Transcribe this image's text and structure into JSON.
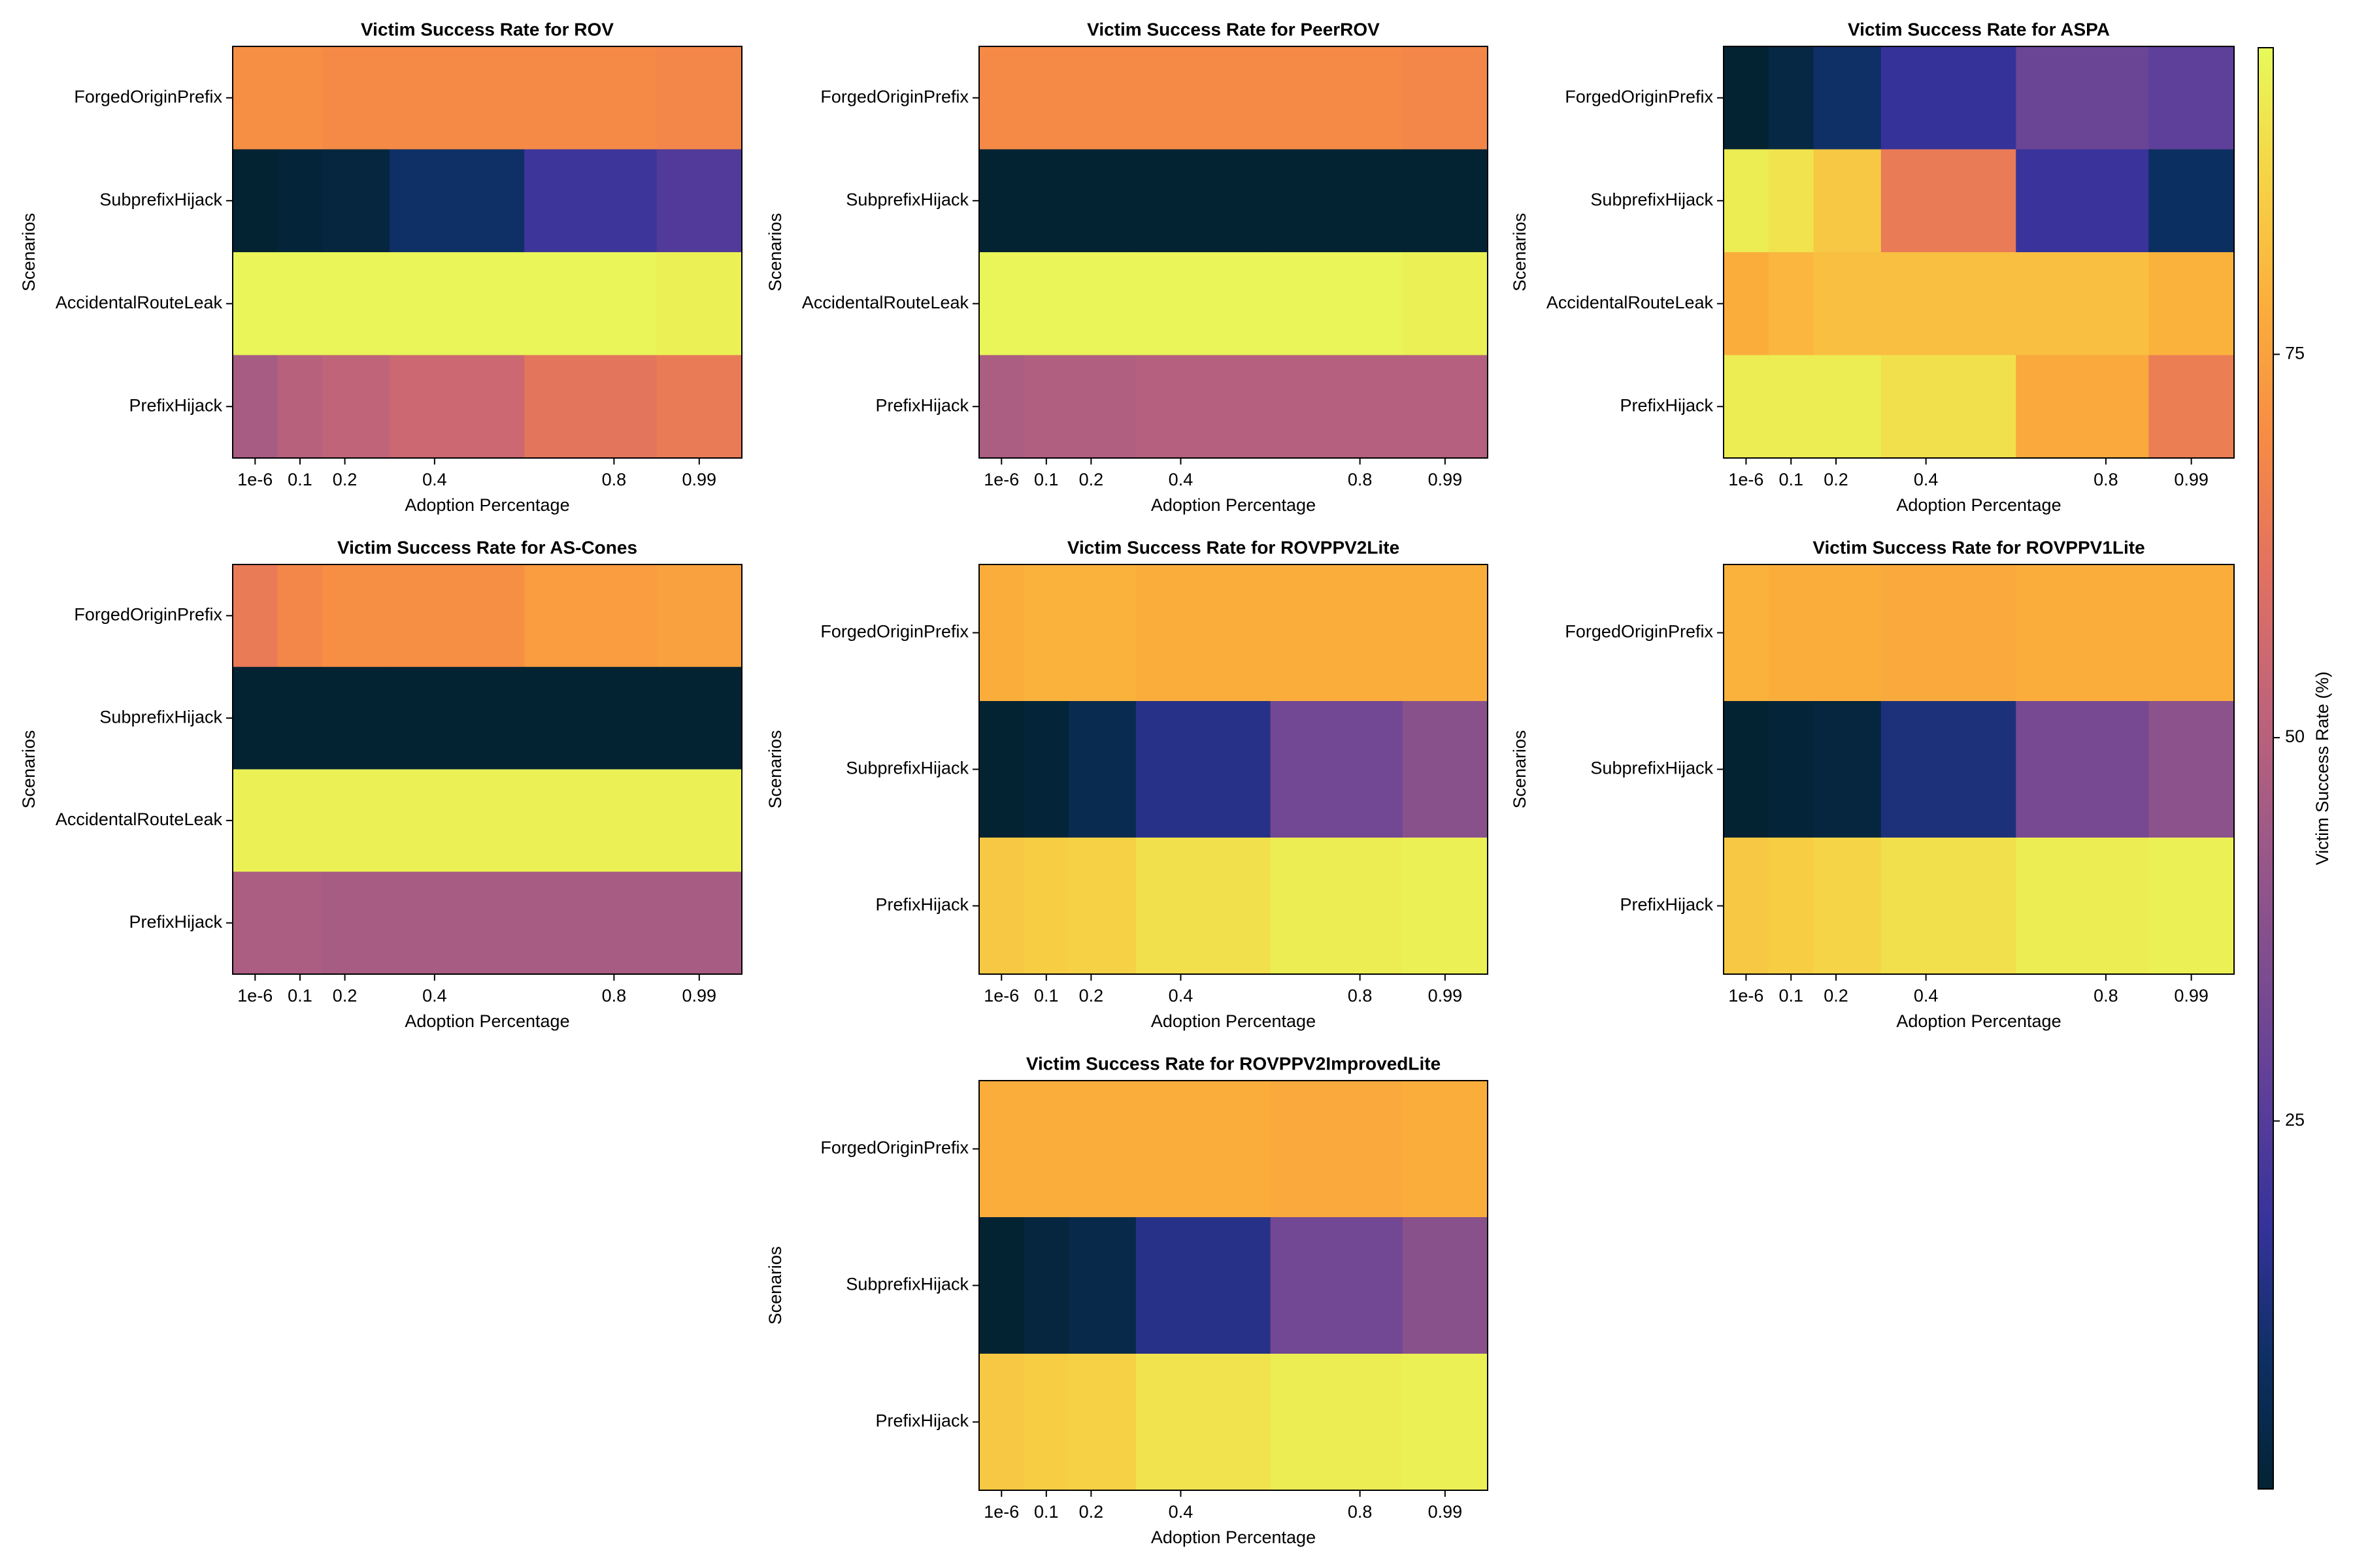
{
  "chart_data": [
    {
      "type": "heatmap",
      "title": "Victim Success Rate for ROV",
      "xlabel": "Adoption Percentage",
      "ylabel": "Scenarios",
      "x": [
        1e-06,
        0.1,
        0.2,
        0.4,
        0.8,
        0.99
      ],
      "xlim": [
        -0.05,
        1.085
      ],
      "xticks": [
        {
          "value": 1e-06,
          "label": "1e-6"
        },
        0.1,
        0.2,
        0.4,
        0.8,
        0.99
      ],
      "categories": [
        "ForgedOriginPrefix",
        "SubprefixHijack",
        "AccidentalRouteLeak",
        "PrefixHijack"
      ],
      "values": [
        [
          70,
          70,
          69,
          69,
          69,
          68
        ],
        [
          1,
          2,
          3,
          10,
          20,
          24
        ],
        [
          94,
          94,
          94,
          94,
          94,
          93
        ],
        [
          46,
          50,
          52,
          55,
          62,
          64
        ]
      ]
    },
    {
      "type": "heatmap",
      "title": "Victim Success Rate for PeerROV",
      "xlabel": "Adoption Percentage",
      "ylabel": "Scenarios",
      "x": [
        1e-06,
        0.1,
        0.2,
        0.4,
        0.8,
        0.99
      ],
      "xlim": [
        -0.05,
        1.085
      ],
      "xticks": [
        {
          "value": 1e-06,
          "label": "1e-6"
        },
        0.1,
        0.2,
        0.4,
        0.8,
        0.99
      ],
      "categories": [
        "ForgedOriginPrefix",
        "SubprefixHijack",
        "AccidentalRouteLeak",
        "PrefixHijack"
      ],
      "values": [
        [
          69,
          69,
          69,
          69,
          69,
          68
        ],
        [
          1,
          1,
          1,
          1,
          1,
          1
        ],
        [
          94,
          94,
          94,
          94,
          94,
          93
        ],
        [
          47,
          48,
          48,
          49,
          49,
          49
        ]
      ]
    },
    {
      "type": "heatmap",
      "title": "Victim Success Rate for ASPA",
      "xlabel": "Adoption Percentage",
      "ylabel": "Scenarios",
      "x": [
        1e-06,
        0.1,
        0.2,
        0.4,
        0.8,
        0.99
      ],
      "xlim": [
        -0.05,
        1.085
      ],
      "xticks": [
        {
          "value": 1e-06,
          "label": "1e-6"
        },
        0.1,
        0.2,
        0.4,
        0.8,
        0.99
      ],
      "categories": [
        "ForgedOriginPrefix",
        "SubprefixHijack",
        "AccidentalRouteLeak",
        "PrefixHijack"
      ],
      "values": [
        [
          1,
          4,
          10,
          18,
          30,
          27
        ],
        [
          92,
          90,
          84,
          64,
          19,
          9
        ],
        [
          78,
          80,
          82,
          82,
          82,
          79
        ],
        [
          92,
          92,
          92,
          89,
          77,
          65
        ]
      ]
    },
    {
      "type": "heatmap",
      "title": "Victim Success Rate for AS-Cones",
      "xlabel": "Adoption Percentage",
      "ylabel": "Scenarios",
      "x": [
        1e-06,
        0.1,
        0.2,
        0.4,
        0.8,
        0.99
      ],
      "xlim": [
        -0.05,
        1.085
      ],
      "xticks": [
        {
          "value": 1e-06,
          "label": "1e-6"
        },
        0.1,
        0.2,
        0.4,
        0.8,
        0.99
      ],
      "categories": [
        "ForgedOriginPrefix",
        "SubprefixHijack",
        "AccidentalRouteLeak",
        "PrefixHijack"
      ],
      "values": [
        [
          64,
          68,
          70,
          70,
          74,
          75
        ],
        [
          1,
          1,
          1,
          1,
          1,
          1
        ],
        [
          93,
          93,
          93,
          93,
          93,
          93
        ],
        [
          47,
          47,
          46,
          46,
          46,
          46
        ]
      ]
    },
    {
      "type": "heatmap",
      "title": "Victim Success Rate for ROVPPV2Lite",
      "xlabel": "Adoption Percentage",
      "ylabel": "Scenarios",
      "x": [
        1e-06,
        0.1,
        0.2,
        0.4,
        0.8,
        0.99
      ],
      "xlim": [
        -0.05,
        1.085
      ],
      "xticks": [
        {
          "value": 1e-06,
          "label": "1e-6"
        },
        0.1,
        0.2,
        0.4,
        0.8,
        0.99
      ],
      "categories": [
        "ForgedOriginPrefix",
        "SubprefixHijack",
        "PrefixHijack"
      ],
      "values": [
        [
          78,
          79,
          79,
          78,
          78,
          78
        ],
        [
          1,
          2,
          6,
          15,
          32,
          38
        ],
        [
          84,
          85,
          86,
          89,
          92,
          93
        ]
      ]
    },
    {
      "type": "heatmap",
      "title": "Victim Success Rate for ROVPPV1Lite",
      "xlabel": "Adoption Percentage",
      "ylabel": "Scenarios",
      "x": [
        1e-06,
        0.1,
        0.2,
        0.4,
        0.8,
        0.99
      ],
      "xlim": [
        -0.05,
        1.085
      ],
      "xticks": [
        {
          "value": 1e-06,
          "label": "1e-6"
        },
        0.1,
        0.2,
        0.4,
        0.8,
        0.99
      ],
      "categories": [
        "ForgedOriginPrefix",
        "SubprefixHijack",
        "PrefixHijack"
      ],
      "values": [
        [
          79,
          78,
          78,
          77,
          78,
          78
        ],
        [
          1,
          2,
          3,
          13,
          33,
          39
        ],
        [
          84,
          85,
          87,
          89,
          92,
          93
        ]
      ]
    },
    {
      "type": "heatmap",
      "title": "Victim Success Rate for ROVPPV2ImprovedLite",
      "xlabel": "Adoption Percentage",
      "ylabel": "Scenarios",
      "x": [
        1e-06,
        0.1,
        0.2,
        0.4,
        0.8,
        0.99
      ],
      "xlim": [
        -0.05,
        1.085
      ],
      "xticks": [
        {
          "value": 1e-06,
          "label": "1e-6"
        },
        0.1,
        0.2,
        0.4,
        0.8,
        0.99
      ],
      "categories": [
        "ForgedOriginPrefix",
        "SubprefixHijack",
        "PrefixHijack"
      ],
      "values": [
        [
          78,
          78,
          78,
          78,
          77,
          78
        ],
        [
          1,
          3,
          5,
          15,
          32,
          38
        ],
        [
          84,
          85,
          86,
          90,
          92,
          93
        ]
      ]
    }
  ],
  "colorbar": {
    "label": "Victim Success Rate (%)",
    "clim": [
      1,
      95
    ],
    "ticks": [
      25,
      50,
      75
    ],
    "colormap": [
      "#032333",
      "#0d3064",
      "#35329b",
      "#5d3e99",
      "#7e4d8f",
      "#9e5987",
      "#c16479",
      "#e17161",
      "#f68b45",
      "#fbad3c",
      "#f6d346",
      "#e7fa5a"
    ]
  }
}
